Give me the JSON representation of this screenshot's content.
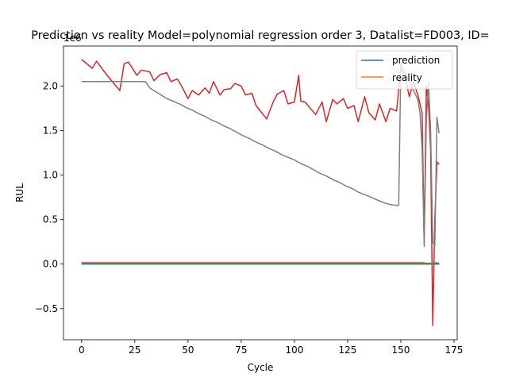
{
  "chart_data": {
    "type": "line",
    "title": "Prediction vs reality Model=polynomial regression order 3, Datalist=FD003, ID=",
    "xlabel": "Cycle",
    "ylabel": "RUL",
    "offset_label": "1e6",
    "xlim": [
      -8.5,
      176.5
    ],
    "ylim": [
      -0.85,
      2.45
    ],
    "xticks": [
      0,
      25,
      50,
      75,
      100,
      125,
      150,
      175
    ],
    "xtick_labels": [
      "0",
      "25",
      "50",
      "75",
      "100",
      "125",
      "150",
      "175"
    ],
    "yticks": [
      -0.5,
      0.0,
      0.5,
      1.0,
      1.5,
      2.0
    ],
    "ytick_labels": [
      "−0.5",
      "0.0",
      "0.5",
      "1.0",
      "1.5",
      "2.0"
    ],
    "grid": false,
    "legend_placement": "top-right",
    "legend": [
      {
        "label": "prediction",
        "color": "#1f77b4"
      },
      {
        "label": "reality",
        "color": "#ff7f0e"
      }
    ],
    "series": [
      {
        "color": "#1f77b4",
        "x": [
          0,
          30,
          60,
          90,
          120,
          150,
          168
        ],
        "values": [
          0.0,
          0.0,
          0.0,
          0.0,
          0.0,
          0.0,
          0.0
        ]
      },
      {
        "color": "#ff7f0e",
        "x": [
          0,
          30,
          60,
          90,
          120,
          150,
          168
        ],
        "values": [
          0.0,
          0.0,
          0.0,
          0.0,
          0.0,
          0.0,
          0.0
        ]
      },
      {
        "color": "#d62728",
        "x": [
          0,
          5,
          7,
          12,
          18,
          20,
          22,
          26,
          28,
          32,
          34,
          37,
          40,
          42,
          45,
          47,
          50,
          52,
          55,
          58,
          60,
          62,
          65,
          67,
          70,
          72,
          75,
          77,
          80,
          82,
          87,
          90,
          92,
          95,
          97,
          100,
          102,
          103,
          105,
          110,
          113,
          115,
          118,
          120,
          123,
          125,
          128,
          130,
          133,
          135,
          138,
          140,
          143,
          145,
          148,
          150,
          152,
          154,
          156,
          158,
          160,
          161,
          162,
          163,
          164,
          165,
          166,
          167,
          168
        ],
        "values": [
          2.3,
          2.2,
          2.28,
          2.12,
          1.95,
          2.25,
          2.27,
          2.12,
          2.18,
          2.16,
          2.06,
          2.13,
          2.15,
          2.05,
          2.08,
          2.0,
          1.86,
          1.95,
          1.9,
          1.98,
          1.92,
          2.05,
          1.9,
          1.96,
          1.97,
          2.03,
          2.0,
          1.9,
          1.92,
          1.78,
          1.63,
          1.82,
          1.91,
          1.95,
          1.8,
          1.82,
          2.12,
          1.83,
          1.82,
          1.68,
          1.82,
          1.6,
          1.85,
          1.8,
          1.86,
          1.75,
          1.78,
          1.6,
          1.88,
          1.7,
          1.62,
          1.8,
          1.6,
          1.75,
          1.72,
          2.2,
          2.1,
          1.88,
          2.05,
          1.9,
          1.7,
          0.25,
          2.0,
          1.8,
          1.3,
          -0.69,
          0.5,
          1.15,
          1.12
        ]
      },
      {
        "color": "#7f7f7f",
        "x": [
          0,
          30,
          32,
          34,
          36,
          38,
          40,
          43,
          46,
          49,
          52,
          55,
          58,
          61,
          64,
          67,
          70,
          73,
          76,
          79,
          82,
          85,
          88,
          91,
          94,
          97,
          100,
          103,
          106,
          109,
          112,
          115,
          118,
          121,
          124,
          127,
          130,
          133,
          136,
          139,
          142,
          145,
          148,
          149,
          150,
          152,
          155,
          158,
          159,
          160,
          161,
          162,
          163,
          164,
          165,
          166,
          167,
          168
        ],
        "values": [
          2.05,
          2.05,
          1.98,
          1.95,
          1.92,
          1.89,
          1.86,
          1.83,
          1.8,
          1.76,
          1.73,
          1.69,
          1.66,
          1.62,
          1.59,
          1.55,
          1.52,
          1.48,
          1.44,
          1.41,
          1.37,
          1.34,
          1.3,
          1.27,
          1.23,
          1.2,
          1.17,
          1.13,
          1.1,
          1.06,
          1.02,
          0.99,
          0.95,
          0.92,
          0.88,
          0.85,
          0.81,
          0.78,
          0.75,
          0.72,
          0.69,
          0.67,
          0.66,
          0.66,
          2.25,
          2.15,
          2.0,
          1.85,
          1.7,
          1.3,
          0.2,
          1.6,
          2.05,
          1.5,
          0.25,
          0.2,
          1.65,
          1.47
        ]
      },
      {
        "color": "#e377c2",
        "x": [
          0,
          20,
          40,
          60,
          80,
          100,
          120,
          140,
          160,
          164,
          166,
          168
        ],
        "values": [
          0.02,
          0.02,
          0.02,
          0.02,
          0.02,
          0.02,
          0.02,
          0.02,
          0.02,
          0.0,
          0.02,
          0.01
        ]
      },
      {
        "color": "#9467bd",
        "x": [
          0,
          30,
          60,
          90,
          120,
          150,
          168
        ],
        "values": [
          0.01,
          0.01,
          0.01,
          0.01,
          0.01,
          0.01,
          0.01
        ]
      },
      {
        "color": "#8c564b",
        "x": [
          0,
          30,
          60,
          90,
          120,
          150,
          168
        ],
        "values": [
          0.005,
          0.005,
          0.005,
          0.005,
          0.005,
          0.005,
          0.005
        ]
      },
      {
        "color": "#2ca02c",
        "x": [
          0,
          30,
          60,
          90,
          120,
          150,
          168
        ],
        "values": [
          0.0,
          0.0,
          0.0,
          0.0,
          0.0,
          0.0,
          0.0
        ]
      }
    ]
  }
}
